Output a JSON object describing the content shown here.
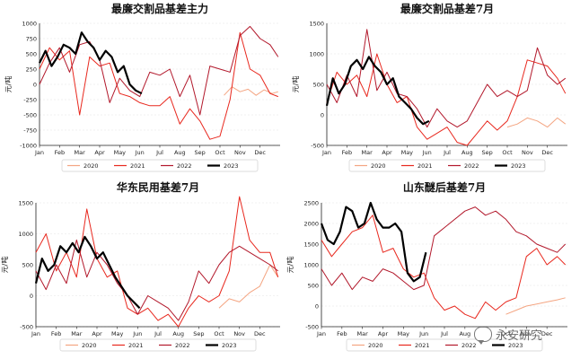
{
  "watermark": "永安研究",
  "months": [
    "Jan",
    "Feb",
    "Mar",
    "Apr",
    "May",
    "Jun",
    "Jul",
    "Aug",
    "Sep",
    "Oct",
    "Nov",
    "Dec"
  ],
  "series_styles": [
    {
      "name": "2020",
      "color": "#f4a582",
      "width": 1
    },
    {
      "name": "2021",
      "color": "#e8281e",
      "width": 1
    },
    {
      "name": "2022",
      "color": "#b2182b",
      "width": 1
    },
    {
      "name": "2023",
      "color": "#000000",
      "width": 2.2
    }
  ],
  "chart_data": [
    {
      "type": "line",
      "title": "最廉交割品基差主力",
      "ylabel": "元/吨",
      "ylim": [
        -1000,
        1000
      ],
      "yticks": [
        -1000,
        -750,
        -500,
        -250,
        0,
        250,
        500,
        750,
        1000
      ],
      "x_unit": "month index (0=Jan 1, 12=Dec 31)",
      "series": [
        {
          "name": "2020",
          "x": [
            9.2,
            9.6,
            10.0,
            10.4,
            10.8,
            11.2,
            11.6,
            11.9
          ],
          "values": [
            -180,
            -40,
            -120,
            -80,
            -180,
            -90,
            -150,
            -120
          ]
        },
        {
          "name": "2021",
          "x": [
            0,
            0.5,
            1.0,
            1.5,
            2.0,
            2.5,
            3.0,
            3.5,
            4.0,
            4.5,
            5.0,
            5.5,
            6.0,
            6.5,
            7.0,
            7.5,
            8.0,
            8.5,
            9.0,
            9.5,
            10.0,
            10.5,
            11.0,
            11.5,
            11.9
          ],
          "values": [
            250,
            600,
            400,
            550,
            -500,
            450,
            300,
            350,
            -150,
            -200,
            -300,
            -350,
            -350,
            -200,
            -650,
            -400,
            -600,
            -900,
            -850,
            -250,
            850,
            250,
            150,
            -150,
            -200
          ]
        },
        {
          "name": "2022",
          "x": [
            0,
            0.5,
            1.0,
            1.5,
            2.0,
            2.5,
            3.0,
            3.5,
            4.0,
            4.5,
            5.0,
            5.5,
            6.0,
            6.5,
            7.0,
            7.5,
            8.0,
            8.5,
            9.0,
            9.5,
            10.0,
            10.5,
            11.0,
            11.5,
            11.9
          ],
          "values": [
            0,
            350,
            600,
            200,
            650,
            700,
            400,
            -300,
            100,
            -100,
            -200,
            200,
            150,
            250,
            -200,
            150,
            -500,
            300,
            250,
            200,
            800,
            950,
            750,
            650,
            450
          ]
        },
        {
          "name": "2023",
          "x": [
            0,
            0.3,
            0.6,
            0.9,
            1.2,
            1.5,
            1.8,
            2.1,
            2.4,
            2.7,
            3.0,
            3.3,
            3.6,
            3.9,
            4.2,
            4.5,
            4.8,
            5.1
          ],
          "values": [
            350,
            550,
            300,
            450,
            650,
            600,
            500,
            850,
            700,
            600,
            400,
            550,
            450,
            200,
            300,
            0,
            -100,
            -150
          ]
        }
      ]
    },
    {
      "type": "line",
      "title": "最廉交割品基差7月",
      "ylabel": "元/吨",
      "ylim": [
        -500,
        1500
      ],
      "yticks": [
        -500,
        0,
        500,
        1000,
        1500
      ],
      "x_unit": "month index (0=Jan 1, 12=Dec 31)",
      "series": [
        {
          "name": "2020",
          "x": [
            9.0,
            9.5,
            10.0,
            10.5,
            11.0,
            11.5,
            11.9
          ],
          "values": [
            -200,
            -150,
            -50,
            -100,
            -200,
            -50,
            -150
          ]
        },
        {
          "name": "2021",
          "x": [
            0,
            0.5,
            1.0,
            1.5,
            2.0,
            2.5,
            3.0,
            3.5,
            4.0,
            4.5,
            5.0,
            5.5,
            6.0,
            6.5,
            7.0,
            7.5,
            8.0,
            8.5,
            9.0,
            9.5,
            10.0,
            10.5,
            11.0,
            11.5,
            11.9
          ],
          "values": [
            200,
            700,
            500,
            650,
            300,
            1000,
            500,
            200,
            300,
            -200,
            -400,
            -300,
            -200,
            -450,
            -500,
            -300,
            -100,
            -250,
            -100,
            300,
            900,
            850,
            800,
            600,
            350
          ]
        },
        {
          "name": "2022",
          "x": [
            0,
            0.5,
            1.0,
            1.5,
            2.0,
            2.5,
            3.0,
            3.5,
            4.0,
            4.5,
            5.0,
            5.5,
            6.0,
            6.5,
            7.0,
            7.5,
            8.0,
            8.5,
            9.0,
            9.5,
            10.0,
            10.5,
            11.0,
            11.5,
            11.9
          ],
          "values": [
            500,
            200,
            650,
            300,
            1400,
            400,
            700,
            350,
            300,
            100,
            -200,
            100,
            -100,
            -200,
            -100,
            200,
            500,
            300,
            400,
            300,
            400,
            1100,
            650,
            500,
            600
          ]
        },
        {
          "name": "2023",
          "x": [
            0,
            0.3,
            0.6,
            0.9,
            1.2,
            1.5,
            1.8,
            2.1,
            2.4,
            2.7,
            3.0,
            3.3,
            3.6,
            3.9,
            4.2,
            4.5,
            4.8,
            5.1
          ],
          "values": [
            150,
            600,
            350,
            500,
            800,
            900,
            750,
            950,
            800,
            700,
            500,
            600,
            300,
            200,
            100,
            -50,
            -150,
            -100
          ]
        }
      ]
    },
    {
      "type": "line",
      "title": "华东民用基差7月",
      "ylabel": "元/吨",
      "ylim": [
        -500,
        1500
      ],
      "yticks": [
        -500,
        0,
        500,
        1000,
        1500
      ],
      "x_unit": "month index (0=Jan 1, 12=Dec 31)",
      "series": [
        {
          "name": "2020",
          "x": [
            9.0,
            9.5,
            10.0,
            10.5,
            11.0,
            11.5,
            11.9
          ],
          "values": [
            -200,
            -50,
            -100,
            50,
            150,
            500,
            300
          ]
        },
        {
          "name": "2021",
          "x": [
            0,
            0.5,
            1.0,
            1.5,
            2.0,
            2.5,
            3.0,
            3.5,
            4.0,
            4.5,
            5.0,
            5.5,
            6.0,
            6.5,
            7.0,
            7.5,
            8.0,
            8.5,
            9.0,
            9.5,
            10.0,
            10.5,
            11.0,
            11.5,
            11.9
          ],
          "values": [
            700,
            1000,
            400,
            700,
            300,
            1400,
            600,
            300,
            400,
            -200,
            -300,
            -200,
            -400,
            -300,
            -500,
            -200,
            0,
            -100,
            0,
            400,
            1600,
            900,
            700,
            700,
            300
          ]
        },
        {
          "name": "2022",
          "x": [
            0,
            0.5,
            1.0,
            1.5,
            2.0,
            2.5,
            3.0,
            3.5,
            4.0,
            4.5,
            5.0,
            5.5,
            6.0,
            6.5,
            7.0,
            7.5,
            8.0,
            8.5,
            9.0,
            9.5,
            10.0,
            10.5,
            11.0,
            11.5,
            11.9
          ],
          "values": [
            400,
            100,
            500,
            200,
            900,
            300,
            700,
            500,
            200,
            0,
            -300,
            0,
            -100,
            -200,
            -400,
            -100,
            400,
            200,
            500,
            700,
            800,
            700,
            600,
            500,
            400
          ]
        },
        {
          "name": "2023",
          "x": [
            0,
            0.3,
            0.6,
            0.9,
            1.2,
            1.5,
            1.8,
            2.1,
            2.4,
            2.7,
            3.0,
            3.3,
            3.6,
            3.9,
            4.2,
            4.5,
            4.8,
            5.1
          ],
          "values": [
            200,
            600,
            400,
            500,
            800,
            700,
            850,
            700,
            950,
            800,
            600,
            700,
            500,
            300,
            150,
            0,
            -100,
            -200
          ]
        }
      ]
    },
    {
      "type": "line",
      "title": "山东醚后基差7月",
      "ylabel": "元/吨",
      "ylim": [
        -500,
        2500
      ],
      "yticks": [
        -500,
        0,
        500,
        1000,
        1500,
        2000,
        2500
      ],
      "x_unit": "month index (0=Jan 1, 12=Dec 31)",
      "series": [
        {
          "name": "2020",
          "x": [
            9.0,
            9.5,
            10.0,
            10.5,
            11.0,
            11.5,
            11.9
          ],
          "values": [
            -200,
            -100,
            0,
            50,
            100,
            150,
            200
          ]
        },
        {
          "name": "2021",
          "x": [
            0,
            0.5,
            1.0,
            1.5,
            2.0,
            2.5,
            3.0,
            3.5,
            4.0,
            4.5,
            5.0,
            5.5,
            6.0,
            6.5,
            7.0,
            7.5,
            8.0,
            8.5,
            9.0,
            9.5,
            10.0,
            10.5,
            11.0,
            11.5,
            11.9
          ],
          "values": [
            1600,
            1200,
            1500,
            1800,
            1900,
            2200,
            1300,
            1400,
            900,
            700,
            800,
            200,
            -100,
            0,
            -200,
            -300,
            100,
            -100,
            100,
            200,
            1200,
            1400,
            1000,
            1200,
            1000
          ]
        },
        {
          "name": "2022",
          "x": [
            0,
            0.5,
            1.0,
            1.5,
            2.0,
            2.5,
            3.0,
            3.5,
            4.0,
            4.5,
            5.0,
            5.5,
            6.0,
            6.5,
            7.0,
            7.5,
            8.0,
            8.5,
            9.0,
            9.5,
            10.0,
            10.5,
            11.0,
            11.5,
            11.9
          ],
          "values": [
            900,
            500,
            800,
            400,
            700,
            600,
            900,
            800,
            600,
            400,
            500,
            1700,
            1900,
            2100,
            2300,
            2400,
            2200,
            2300,
            2100,
            1800,
            1700,
            1500,
            1400,
            1300,
            1500
          ]
        },
        {
          "name": "2023",
          "x": [
            0,
            0.3,
            0.6,
            0.9,
            1.2,
            1.5,
            1.8,
            2.1,
            2.4,
            2.7,
            3.0,
            3.3,
            3.6,
            3.9,
            4.2,
            4.5,
            4.8,
            5.1
          ],
          "values": [
            2000,
            1600,
            1500,
            1800,
            2400,
            2300,
            1900,
            2000,
            2500,
            2100,
            1900,
            1900,
            2000,
            1800,
            800,
            600,
            700,
            1300
          ]
        }
      ]
    }
  ]
}
